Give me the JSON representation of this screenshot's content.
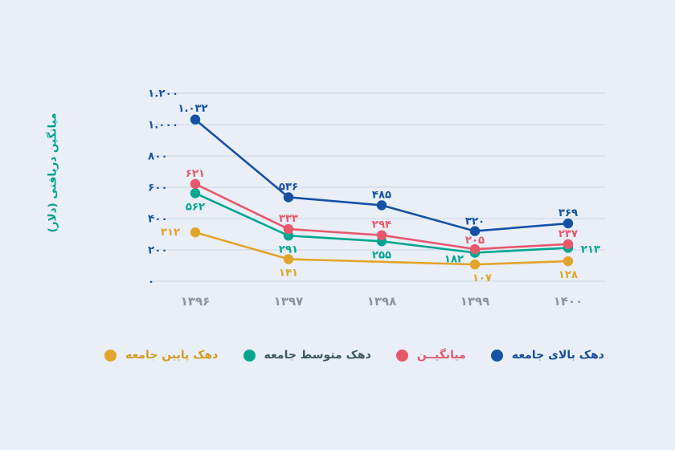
{
  "colors": {
    "background": "#E9EEF7",
    "gridline": "#CBD5E4",
    "y_tick_text": "#1B54A3",
    "x_tick_text": "#8C93A3",
    "y_axis_title": "#00A18B"
  },
  "chart_data": {
    "type": "line",
    "title": "",
    "ylabel": "میانگین دریافتی (دلار)",
    "xlabel": "",
    "grid": true,
    "legend_position": "bottom",
    "ylim": [
      0,
      1200
    ],
    "y_ticks": [
      0,
      200,
      400,
      600,
      800,
      1000,
      1200
    ],
    "y_ticks_display": [
      "۰",
      "۲۰۰",
      "۴۰۰",
      "۶۰۰",
      "۸۰۰",
      "۱.۰۰۰",
      "۱.۲۰۰"
    ],
    "categories": [
      1396,
      1397,
      1398,
      1399,
      1400
    ],
    "categories_display": [
      "۱۳۹۶",
      "۱۳۹۷",
      "۱۳۹۸",
      "۱۳۹۹",
      "۱۴۰۰"
    ],
    "series": [
      {
        "id": "lower",
        "name": "دهک پایین جامعه",
        "color": "#E2A42A",
        "values": [
          312,
          141,
          null,
          107,
          128
        ],
        "value_labels": [
          "۳۱۲",
          "۱۴۱",
          "",
          "۱۰۷",
          "۱۲۸"
        ]
      },
      {
        "id": "middle",
        "name": "دهک متوسط جامعه",
        "color": "#00A78E",
        "values": [
          562,
          291,
          255,
          182,
          213
        ],
        "value_labels": [
          "۵۶۲",
          "۲۹۱",
          "۲۵۵",
          "۱۸۲",
          "۲۱۳"
        ]
      },
      {
        "id": "mean",
        "name": "میانگین",
        "color": "#E8586C",
        "values": [
          621,
          333,
          294,
          205,
          237
        ],
        "value_labels": [
          "۶۲۱",
          "۳۳۳",
          "۲۹۴",
          "۲۰۵",
          "۲۳۷"
        ]
      },
      {
        "id": "upper",
        "name": "دهک بالای جامعه",
        "color": "#1552A5",
        "values": [
          1032,
          536,
          485,
          320,
          369
        ],
        "value_labels": [
          "۱.۰۳۲",
          "۵۳۶",
          "۴۸۵",
          "۳۲۰",
          "۳۶۹"
        ]
      }
    ]
  },
  "legend": {
    "items": [
      {
        "series_id": "lower",
        "label": "دهک پایین جامعه",
        "dot_color": "#E2A42A",
        "text_color": "#D59B25"
      },
      {
        "series_id": "middle",
        "label": "دهک متوسط جامعه",
        "dot_color": "#00A78E",
        "text_color": "#3E5B5E"
      },
      {
        "series_id": "mean",
        "label": "میانگیــن",
        "dot_color": "#E8586C",
        "text_color": "#E15A6E"
      },
      {
        "series_id": "upper",
        "label": "دهک بالای جامعه",
        "dot_color": "#1552A5",
        "text_color": "#174E9E"
      }
    ]
  }
}
